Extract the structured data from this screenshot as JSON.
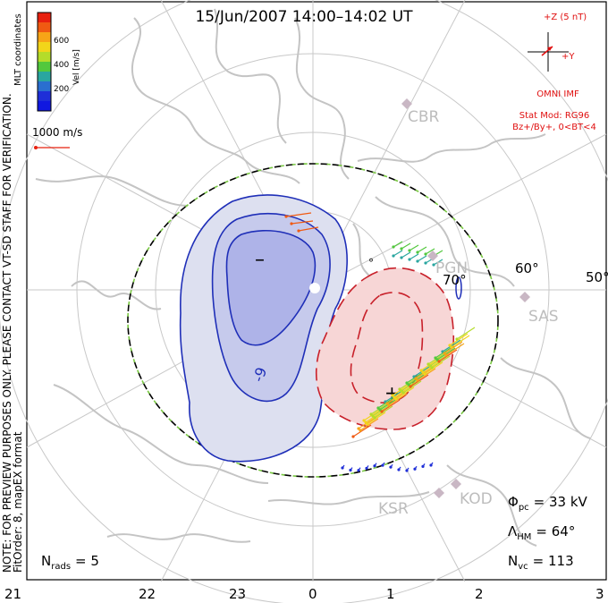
{
  "title": "15/Jun/2007 14:00–14:02 UT",
  "side_note_line1": "NOTE: FOR PREVIEW PURPOSES ONLY. PLEASE CONTACT VT-SD STAFF FOR VERIFICATION.",
  "side_note_line2": "FitOrder: 8, mapEX format",
  "coord_label": "MLT coordinates",
  "colorbar": {
    "label": "Vel [m/s]",
    "ticks": [
      "600",
      "400",
      "200"
    ]
  },
  "scale_vector": "1000 m/s",
  "imf": {
    "z_label": "+Z (5 nT)",
    "y_label": "+Y",
    "source": "OMNI IMF",
    "model": "Stat Mod: RG96",
    "condition": "Bz+/By+, 0<BT<4"
  },
  "stations": [
    "CBR",
    "SAS",
    "KSR",
    "KOD",
    "PGN"
  ],
  "lat_labels": [
    "70°",
    "60°",
    "50°"
  ],
  "mlt_labels": [
    "21",
    "22",
    "23",
    "0",
    "1",
    "2",
    "3"
  ],
  "cell_signs": {
    "negative": "–",
    "positive": "+"
  },
  "contour_label": "-9",
  "stats": {
    "phi_symbol": "Φ",
    "phi_sub": "pc",
    "phi_value": "= 33 kV",
    "lambda_symbol": "Λ",
    "lambda_sub": "HM",
    "lambda_value": "= 64°",
    "nvc_symbol": "N",
    "nvc_sub": "vc",
    "nvc_value": "= 113",
    "nrads_symbol": "N",
    "nrads_sub": "rads",
    "nrads_value": "= 5"
  },
  "colors": {
    "negative_cell": "#1f2fb8",
    "positive_cell": "#c8202a",
    "imf": "#e01010",
    "coast": "#c4c4c4",
    "grid": "#c8c8c8"
  }
}
